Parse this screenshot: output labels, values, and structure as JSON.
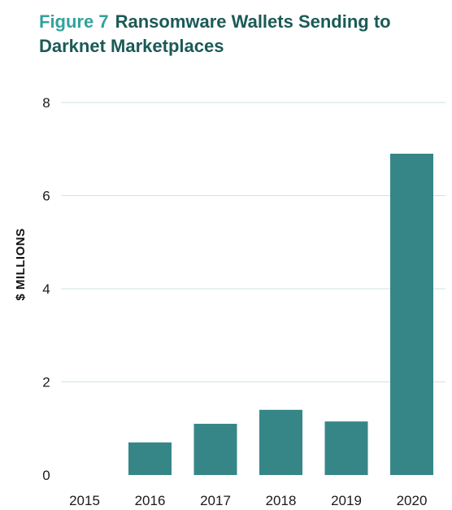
{
  "header": {
    "figure_label": "Figure 7",
    "title": "Ransomware Wallets Sending to Darknet Marketplaces"
  },
  "colors": {
    "bar": "#368688",
    "title": "#1b5a56",
    "figure_label": "#34a29d",
    "gridline": "#cfe3e1"
  },
  "chart_data": {
    "type": "bar",
    "title": "Ransomware Wallets Sending to Darknet Marketplaces",
    "xlabel": "",
    "ylabel": "$ MILLIONS",
    "categories": [
      "2015",
      "2016",
      "2017",
      "2018",
      "2019",
      "2020"
    ],
    "values": [
      0,
      0.7,
      1.1,
      1.4,
      1.15,
      6.9
    ],
    "ylim": [
      0,
      8
    ],
    "yticks": [
      0,
      2,
      4,
      6,
      8
    ],
    "grid": true,
    "legend": "none"
  }
}
